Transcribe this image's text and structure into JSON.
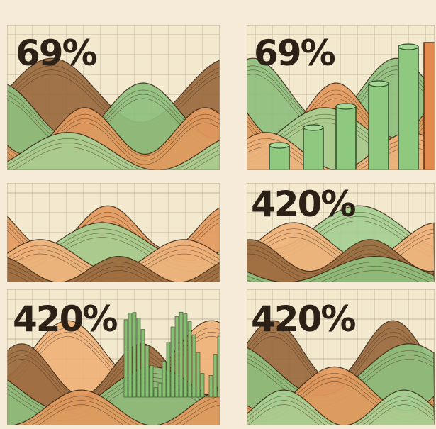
{
  "top_row": {
    "left": "69%",
    "right": "69%"
  },
  "middle_row": {
    "right": "420%"
  },
  "bottom_row": {
    "left": "420%",
    "right": "420%"
  }
}
